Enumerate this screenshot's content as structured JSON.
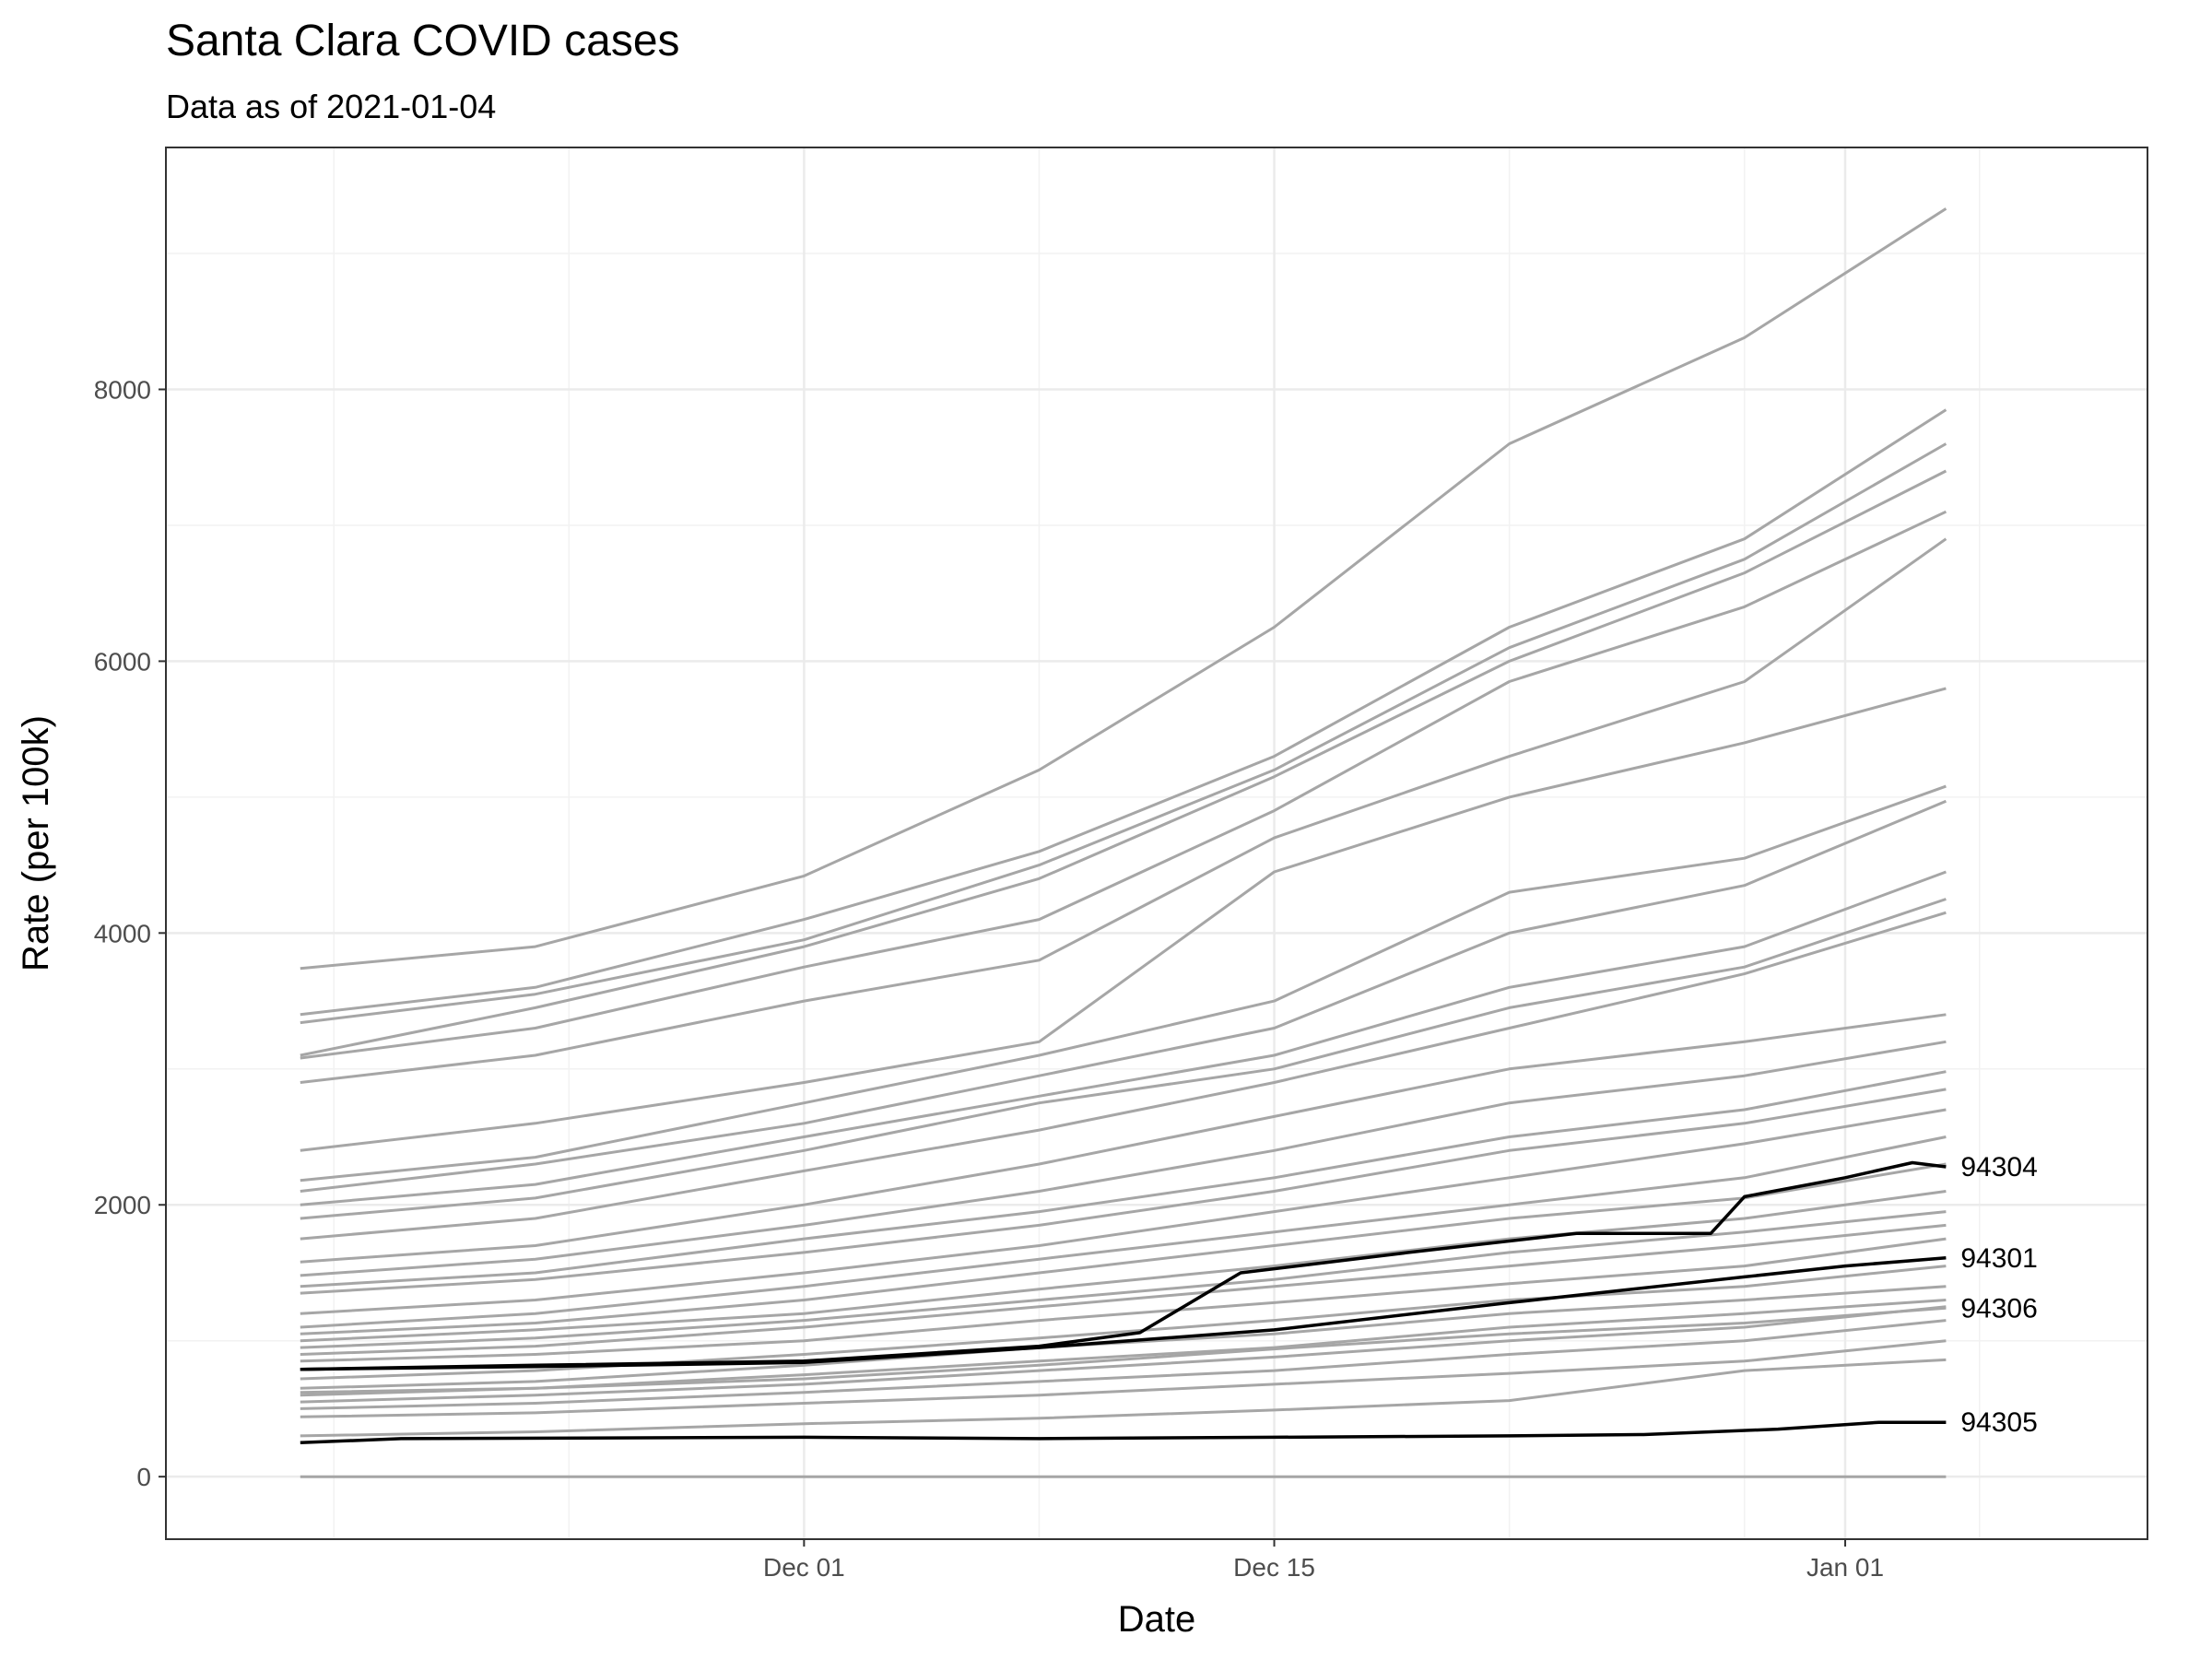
{
  "chart_data": {
    "type": "line",
    "title": "Santa Clara COVID cases",
    "subtitle": "Data as of 2021-01-04",
    "xlabel": "Date",
    "ylabel": "Rate (per 100k)",
    "x_range": [
      "2020-11-12",
      "2021-01-10"
    ],
    "ylim": [
      -460,
      9780
    ],
    "x_ticks": [
      {
        "date": "2020-12-01",
        "label": "Dec 01"
      },
      {
        "date": "2020-12-15",
        "label": "Dec 15"
      },
      {
        "date": "2021-01-01",
        "label": "Jan 01"
      }
    ],
    "y_ticks": [
      {
        "value": 0,
        "label": "0"
      },
      {
        "value": 2000,
        "label": "2000"
      },
      {
        "value": 4000,
        "label": "4000"
      },
      {
        "value": 6000,
        "label": "6000"
      },
      {
        "value": 8000,
        "label": "8000"
      }
    ],
    "grid": true,
    "legend": "none",
    "colors": {
      "background_series": "#a6a6a6",
      "highlight_series": "#000000",
      "grid": "#ebebeb",
      "panel_border": "#333333"
    },
    "series": [
      {
        "x": [
          "2020-11-16",
          "2020-11-23",
          "2020-12-01",
          "2020-12-08",
          "2020-12-15",
          "2020-12-22",
          "2020-12-29",
          "2021-01-04"
        ],
        "values": [
          3740,
          3900,
          4420,
          5200,
          6250,
          7600,
          8380,
          9330
        ]
      },
      {
        "x": [
          "2020-11-16",
          "2020-11-23",
          "2020-12-01",
          "2020-12-08",
          "2020-12-15",
          "2020-12-22",
          "2020-12-29",
          "2021-01-04"
        ],
        "values": [
          3400,
          3600,
          4100,
          4600,
          5300,
          6250,
          6900,
          7850
        ]
      },
      {
        "x": [
          "2020-11-16",
          "2020-11-23",
          "2020-12-01",
          "2020-12-08",
          "2020-12-15",
          "2020-12-22",
          "2020-12-29",
          "2021-01-04"
        ],
        "values": [
          3340,
          3550,
          3950,
          4500,
          5200,
          6100,
          6750,
          7600
        ]
      },
      {
        "x": [
          "2020-11-16",
          "2020-11-23",
          "2020-12-01",
          "2020-12-08",
          "2020-12-15",
          "2020-12-22",
          "2020-12-29",
          "2021-01-04"
        ],
        "values": [
          3100,
          3450,
          3900,
          4400,
          5150,
          6000,
          6650,
          7400
        ]
      },
      {
        "x": [
          "2020-11-16",
          "2020-11-23",
          "2020-12-01",
          "2020-12-08",
          "2020-12-15",
          "2020-12-22",
          "2020-12-29",
          "2021-01-04"
        ],
        "values": [
          3080,
          3300,
          3750,
          4100,
          4900,
          5850,
          6400,
          7100
        ]
      },
      {
        "x": [
          "2020-11-16",
          "2020-11-23",
          "2020-12-01",
          "2020-12-08",
          "2020-12-15",
          "2020-12-22",
          "2020-12-29",
          "2021-01-04"
        ],
        "values": [
          2900,
          3100,
          3500,
          3800,
          4700,
          5300,
          5850,
          6900
        ]
      },
      {
        "x": [
          "2020-11-16",
          "2020-11-23",
          "2020-12-01",
          "2020-12-08",
          "2020-12-15",
          "2020-12-22",
          "2020-12-29",
          "2021-01-04"
        ],
        "values": [
          2400,
          2600,
          2900,
          3200,
          4450,
          5000,
          5400,
          5800
        ]
      },
      {
        "x": [
          "2020-11-16",
          "2020-11-23",
          "2020-12-01",
          "2020-12-08",
          "2020-12-15",
          "2020-12-22",
          "2020-12-29",
          "2021-01-04"
        ],
        "values": [
          2180,
          2350,
          2750,
          3100,
          3500,
          4300,
          4550,
          5080
        ]
      },
      {
        "x": [
          "2020-11-16",
          "2020-11-23",
          "2020-12-01",
          "2020-12-08",
          "2020-12-15",
          "2020-12-22",
          "2020-12-29",
          "2021-01-04"
        ],
        "values": [
          2100,
          2300,
          2600,
          2950,
          3300,
          4000,
          4350,
          4970
        ]
      },
      {
        "x": [
          "2020-11-16",
          "2020-11-23",
          "2020-12-01",
          "2020-12-08",
          "2020-12-15",
          "2020-12-22",
          "2020-12-29",
          "2021-01-04"
        ],
        "values": [
          2000,
          2150,
          2500,
          2800,
          3100,
          3600,
          3900,
          4450
        ]
      },
      {
        "x": [
          "2020-11-16",
          "2020-11-23",
          "2020-12-01",
          "2020-12-08",
          "2020-12-15",
          "2020-12-22",
          "2020-12-29",
          "2021-01-04"
        ],
        "values": [
          1900,
          2050,
          2400,
          2750,
          3000,
          3450,
          3750,
          4250
        ]
      },
      {
        "x": [
          "2020-11-16",
          "2020-11-23",
          "2020-12-01",
          "2020-12-08",
          "2020-12-15",
          "2020-12-22",
          "2020-12-29",
          "2021-01-04"
        ],
        "values": [
          1750,
          1900,
          2250,
          2550,
          2900,
          3300,
          3700,
          4150
        ]
      },
      {
        "x": [
          "2020-11-16",
          "2020-11-23",
          "2020-12-01",
          "2020-12-08",
          "2020-12-15",
          "2020-12-22",
          "2020-12-29",
          "2021-01-04"
        ],
        "values": [
          1580,
          1700,
          2000,
          2300,
          2650,
          3000,
          3200,
          3400
        ]
      },
      {
        "x": [
          "2020-11-16",
          "2020-11-23",
          "2020-12-01",
          "2020-12-08",
          "2020-12-15",
          "2020-12-22",
          "2020-12-29",
          "2021-01-04"
        ],
        "values": [
          1480,
          1600,
          1850,
          2100,
          2400,
          2750,
          2950,
          3200
        ]
      },
      {
        "x": [
          "2020-11-16",
          "2020-11-23",
          "2020-12-01",
          "2020-12-08",
          "2020-12-15",
          "2020-12-22",
          "2020-12-29",
          "2021-01-04"
        ],
        "values": [
          1400,
          1500,
          1750,
          1950,
          2200,
          2500,
          2700,
          2980
        ]
      },
      {
        "x": [
          "2020-11-16",
          "2020-11-23",
          "2020-12-01",
          "2020-12-08",
          "2020-12-15",
          "2020-12-22",
          "2020-12-29",
          "2021-01-04"
        ],
        "values": [
          1350,
          1450,
          1650,
          1850,
          2100,
          2400,
          2600,
          2850
        ]
      },
      {
        "x": [
          "2020-11-16",
          "2020-11-23",
          "2020-12-01",
          "2020-12-08",
          "2020-12-15",
          "2020-12-22",
          "2020-12-29",
          "2021-01-04"
        ],
        "values": [
          1200,
          1300,
          1500,
          1700,
          1950,
          2200,
          2450,
          2700
        ]
      },
      {
        "x": [
          "2020-11-16",
          "2020-11-23",
          "2020-12-01",
          "2020-12-08",
          "2020-12-15",
          "2020-12-22",
          "2020-12-29",
          "2021-01-04"
        ],
        "values": [
          1100,
          1200,
          1400,
          1600,
          1800,
          2000,
          2200,
          2500
        ]
      },
      {
        "x": [
          "2020-11-16",
          "2020-11-23",
          "2020-12-01",
          "2020-12-08",
          "2020-12-15",
          "2020-12-22",
          "2020-12-29",
          "2021-01-04"
        ],
        "values": [
          1050,
          1130,
          1300,
          1500,
          1700,
          1900,
          2050,
          2300
        ]
      },
      {
        "x": [
          "2020-11-16",
          "2020-11-23",
          "2020-12-01",
          "2020-12-08",
          "2020-12-15",
          "2020-12-22",
          "2020-12-29",
          "2021-01-04"
        ],
        "values": [
          1000,
          1080,
          1200,
          1380,
          1550,
          1750,
          1900,
          2100
        ]
      },
      {
        "x": [
          "2020-11-16",
          "2020-11-23",
          "2020-12-01",
          "2020-12-08",
          "2020-12-15",
          "2020-12-22",
          "2020-12-29",
          "2021-01-04"
        ],
        "values": [
          950,
          1020,
          1150,
          1300,
          1450,
          1650,
          1800,
          1950
        ]
      },
      {
        "x": [
          "2020-11-16",
          "2020-11-23",
          "2020-12-01",
          "2020-12-08",
          "2020-12-15",
          "2020-12-22",
          "2020-12-29",
          "2021-01-04"
        ],
        "values": [
          900,
          960,
          1100,
          1250,
          1400,
          1550,
          1700,
          1850
        ]
      },
      {
        "x": [
          "2020-11-16",
          "2020-11-23",
          "2020-12-01",
          "2020-12-08",
          "2020-12-15",
          "2020-12-22",
          "2020-12-29",
          "2021-01-04"
        ],
        "values": [
          850,
          900,
          1000,
          1150,
          1280,
          1420,
          1550,
          1750
        ]
      },
      {
        "x": [
          "2020-11-16",
          "2020-11-23",
          "2020-12-01",
          "2020-12-08",
          "2020-12-15",
          "2020-12-22",
          "2020-12-29",
          "2021-01-04"
        ],
        "values": [
          720,
          780,
          900,
          1020,
          1150,
          1300,
          1400,
          1550
        ]
      },
      {
        "x": [
          "2020-11-16",
          "2020-11-23",
          "2020-12-01",
          "2020-12-08",
          "2020-12-15",
          "2020-12-22",
          "2020-12-29",
          "2021-01-04"
        ],
        "values": [
          650,
          700,
          820,
          950,
          1050,
          1200,
          1300,
          1400
        ]
      },
      {
        "x": [
          "2020-11-16",
          "2020-11-23",
          "2020-12-01",
          "2020-12-08",
          "2020-12-15",
          "2020-12-22",
          "2020-12-29",
          "2021-01-04"
        ],
        "values": [
          600,
          650,
          750,
          850,
          950,
          1100,
          1200,
          1300
        ]
      },
      {
        "x": [
          "2020-11-16",
          "2020-11-23",
          "2020-12-01",
          "2020-12-08",
          "2020-12-15",
          "2020-12-22",
          "2020-12-29",
          "2021-01-04"
        ],
        "values": [
          550,
          600,
          680,
          780,
          880,
          1000,
          1100,
          1250
        ]
      },
      {
        "x": [
          "2020-11-16",
          "2020-11-23",
          "2020-12-01",
          "2020-12-08",
          "2020-12-15",
          "2020-12-22",
          "2020-12-29",
          "2021-01-04"
        ],
        "values": [
          500,
          540,
          620,
          700,
          780,
          900,
          1000,
          1150
        ]
      },
      {
        "x": [
          "2020-11-16",
          "2020-11-23",
          "2020-12-01",
          "2020-12-08",
          "2020-12-15",
          "2020-12-22",
          "2020-12-29",
          "2021-01-04"
        ],
        "values": [
          440,
          470,
          540,
          600,
          680,
          760,
          850,
          1000
        ]
      },
      {
        "x": [
          "2020-11-16",
          "2020-11-23",
          "2020-12-01",
          "2020-12-08",
          "2020-12-15",
          "2020-12-22",
          "2020-12-29",
          "2021-01-04"
        ],
        "values": [
          300,
          330,
          390,
          430,
          490,
          560,
          780,
          860
        ]
      },
      {
        "x": [
          "2020-11-16",
          "2021-01-04"
        ],
        "values": [
          0,
          0
        ]
      },
      {
        "name": "94304",
        "highlight": true,
        "x": [
          "2020-11-16",
          "2020-11-23",
          "2020-12-01",
          "2020-12-08",
          "2020-12-11",
          "2020-12-14",
          "2020-12-19",
          "2020-12-24",
          "2020-12-28",
          "2020-12-29",
          "2021-01-01",
          "2021-01-03",
          "2021-01-04"
        ],
        "values": [
          790,
          820,
          850,
          960,
          1060,
          1500,
          1650,
          1790,
          1790,
          2060,
          2200,
          2310,
          2280
        ]
      },
      {
        "name": "94301",
        "highlight": true,
        "x": [
          "2020-11-16",
          "2020-11-23",
          "2020-12-01",
          "2020-12-08",
          "2020-12-15",
          "2020-12-22",
          "2020-12-29",
          "2021-01-01",
          "2021-01-04"
        ],
        "values": [
          790,
          810,
          840,
          950,
          1080,
          1280,
          1470,
          1550,
          1610
        ]
      },
      {
        "name": "94306",
        "highlight": false,
        "x": [
          "2020-11-16",
          "2020-11-23",
          "2020-12-01",
          "2020-12-08",
          "2020-12-15",
          "2020-12-22",
          "2020-12-29",
          "2021-01-04"
        ],
        "values": [
          620,
          650,
          720,
          820,
          940,
          1050,
          1130,
          1240
        ]
      },
      {
        "name": "94305",
        "highlight": true,
        "x": [
          "2020-11-16",
          "2020-11-19",
          "2020-12-01",
          "2020-12-08",
          "2020-12-15",
          "2020-12-22",
          "2020-12-26",
          "2020-12-30",
          "2021-01-02",
          "2021-01-04"
        ],
        "values": [
          250,
          280,
          290,
          280,
          290,
          300,
          310,
          350,
          400,
          400
        ]
      }
    ],
    "end_labels": [
      "94304",
      "94301",
      "94306",
      "94305"
    ]
  }
}
